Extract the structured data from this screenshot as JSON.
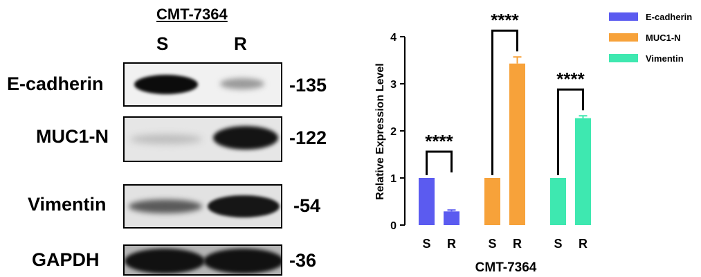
{
  "western_blot": {
    "title": "CMT-7364",
    "lane_labels": [
      "S",
      "R"
    ],
    "rows": [
      {
        "label": "E-cadherin",
        "mw": "-135"
      },
      {
        "label": "MUC1-N",
        "mw": "-122"
      },
      {
        "label": "Vimentin",
        "mw": "-54"
      },
      {
        "label": "GAPDH",
        "mw": "-36"
      }
    ]
  },
  "chart_data": {
    "type": "bar",
    "title": "",
    "xlabel": "CMT-7364",
    "ylabel": "Relative Expression Level",
    "ylim": [
      0,
      4
    ],
    "yticks": [
      "0",
      "1",
      "2",
      "3",
      "4"
    ],
    "categories": [
      "S",
      "R"
    ],
    "legend_position": "top-right",
    "significance": "****",
    "series": [
      {
        "name": "E-cadherin",
        "color": "#5b5bf0",
        "values": [
          1,
          0.29
        ],
        "error": [
          0,
          0.03
        ]
      },
      {
        "name": "MUC1-N",
        "color": "#f7a23a",
        "values": [
          1,
          3.43
        ],
        "error": [
          0,
          0.14
        ]
      },
      {
        "name": "Vimentin",
        "color": "#3ee8b0",
        "values": [
          1,
          2.27
        ],
        "error": [
          0,
          0.05
        ]
      }
    ]
  }
}
